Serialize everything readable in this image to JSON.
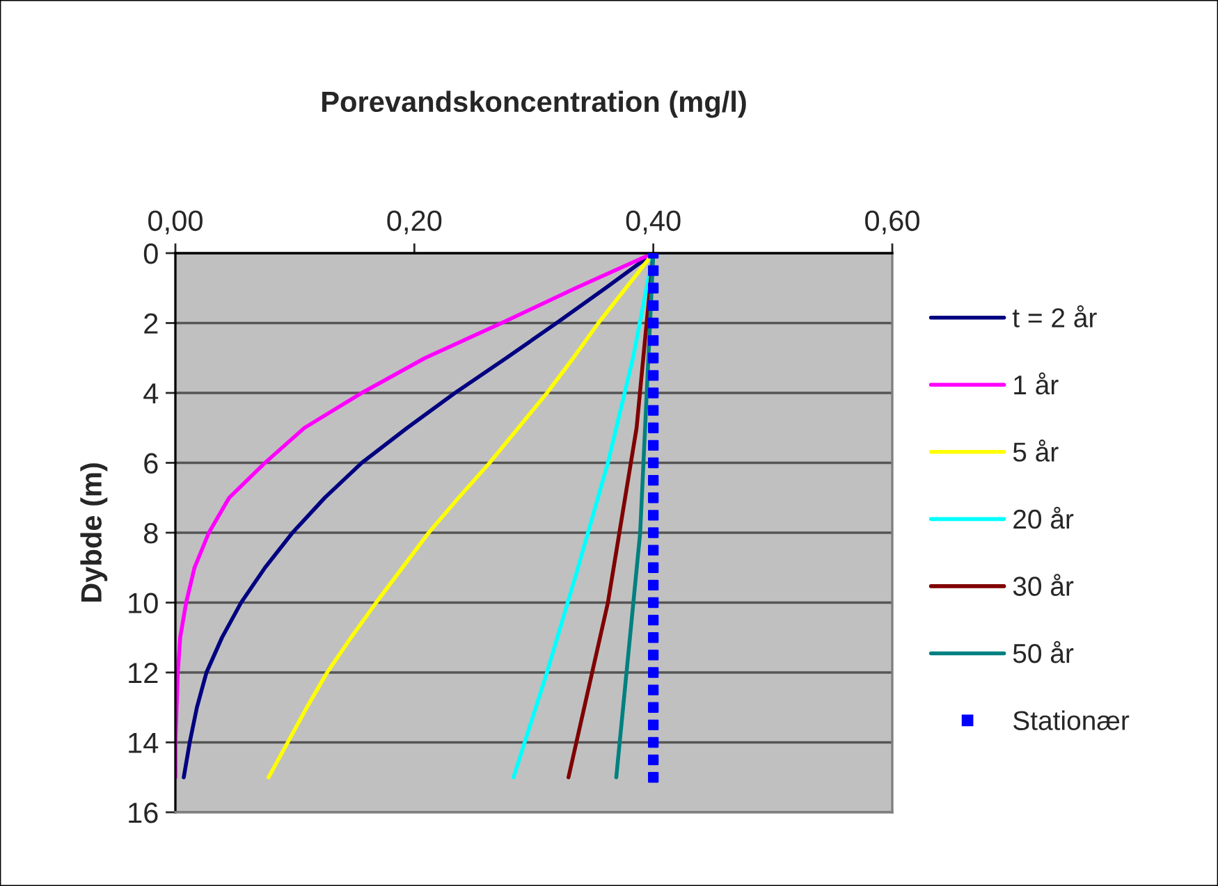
{
  "chart_data": {
    "type": "line",
    "title": "Porevandskoncentration (mg/l)",
    "ylabel": "Dybde (m)",
    "xlim": [
      0,
      0.6
    ],
    "xticks": [
      {
        "value": 0,
        "label": "0,00"
      },
      {
        "value": 0.2,
        "label": "0,20"
      },
      {
        "value": 0.4,
        "label": "0,40"
      },
      {
        "value": 0.6,
        "label": "0,60"
      }
    ],
    "ylim": [
      16,
      0
    ],
    "yticks": [
      0,
      2,
      4,
      6,
      8,
      10,
      12,
      14,
      16
    ],
    "grid": "y",
    "legend": "right",
    "line_style": "solid",
    "series": [
      {
        "name": "t = 2 år",
        "color": "#000080",
        "x": [
          0.4,
          0.36,
          0.319,
          0.277,
          0.234,
          0.194,
          0.156,
          0.125,
          0.098,
          0.075,
          0.055,
          0.039,
          0.026,
          0.018,
          0.012,
          0.007
        ],
        "values": [
          0,
          1,
          2,
          3,
          4,
          5,
          6,
          7,
          8,
          9,
          10,
          11,
          12,
          13,
          14,
          15
        ]
      },
      {
        "name": "1 år",
        "color": "#ff00ff",
        "x": [
          0.4,
          0.335,
          0.273,
          0.209,
          0.156,
          0.108,
          0.075,
          0.045,
          0.028,
          0.016,
          0.009,
          0.004,
          0.002,
          0.001,
          0.0,
          0.0
        ],
        "values": [
          0,
          1,
          2,
          3,
          4,
          5,
          6,
          7,
          8,
          9,
          10,
          11,
          12,
          13,
          14,
          15
        ]
      },
      {
        "name": "5 år",
        "color": "#ffff00",
        "x": [
          0.4,
          0.377,
          0.354,
          0.333,
          0.311,
          0.287,
          0.263,
          0.237,
          0.212,
          0.19,
          0.168,
          0.147,
          0.127,
          0.11,
          0.094,
          0.078
        ],
        "values": [
          0,
          1,
          2,
          3,
          4,
          5,
          6,
          7,
          8,
          9,
          10,
          11,
          12,
          13,
          14,
          15
        ]
      },
      {
        "name": "20 år",
        "color": "#00ffff",
        "x": [
          0.4,
          0.383,
          0.362,
          0.337,
          0.311,
          0.283
        ],
        "values": [
          0,
          3,
          6,
          9,
          12,
          15
        ]
      },
      {
        "name": "30 år",
        "color": "#800000",
        "x": [
          0.4,
          0.386,
          0.362,
          0.329
        ],
        "values": [
          0,
          5,
          10,
          15
        ]
      },
      {
        "name": "50 år",
        "color": "#008080",
        "x": [
          0.4,
          0.389,
          0.369
        ],
        "values": [
          0,
          8,
          15
        ]
      },
      {
        "name": "Stationær",
        "type": "scatter",
        "marker": "square",
        "color": "#0000ff",
        "x": [
          0.4,
          0.4,
          0.4,
          0.4,
          0.4,
          0.4,
          0.4,
          0.4,
          0.4,
          0.4,
          0.4,
          0.4,
          0.4,
          0.4,
          0.4,
          0.4,
          0.4,
          0.4,
          0.4,
          0.4,
          0.4,
          0.4,
          0.4,
          0.4,
          0.4,
          0.4,
          0.4,
          0.4,
          0.4,
          0.4,
          0.4
        ],
        "values": [
          0,
          0.5,
          1,
          1.5,
          2,
          2.5,
          3,
          3.5,
          4,
          4.5,
          5,
          5.5,
          6,
          6.5,
          7,
          7.5,
          8,
          8.5,
          9,
          9.5,
          10,
          10.5,
          11,
          11.5,
          12,
          12.5,
          13,
          13.5,
          14,
          14.5,
          15
        ]
      }
    ]
  }
}
